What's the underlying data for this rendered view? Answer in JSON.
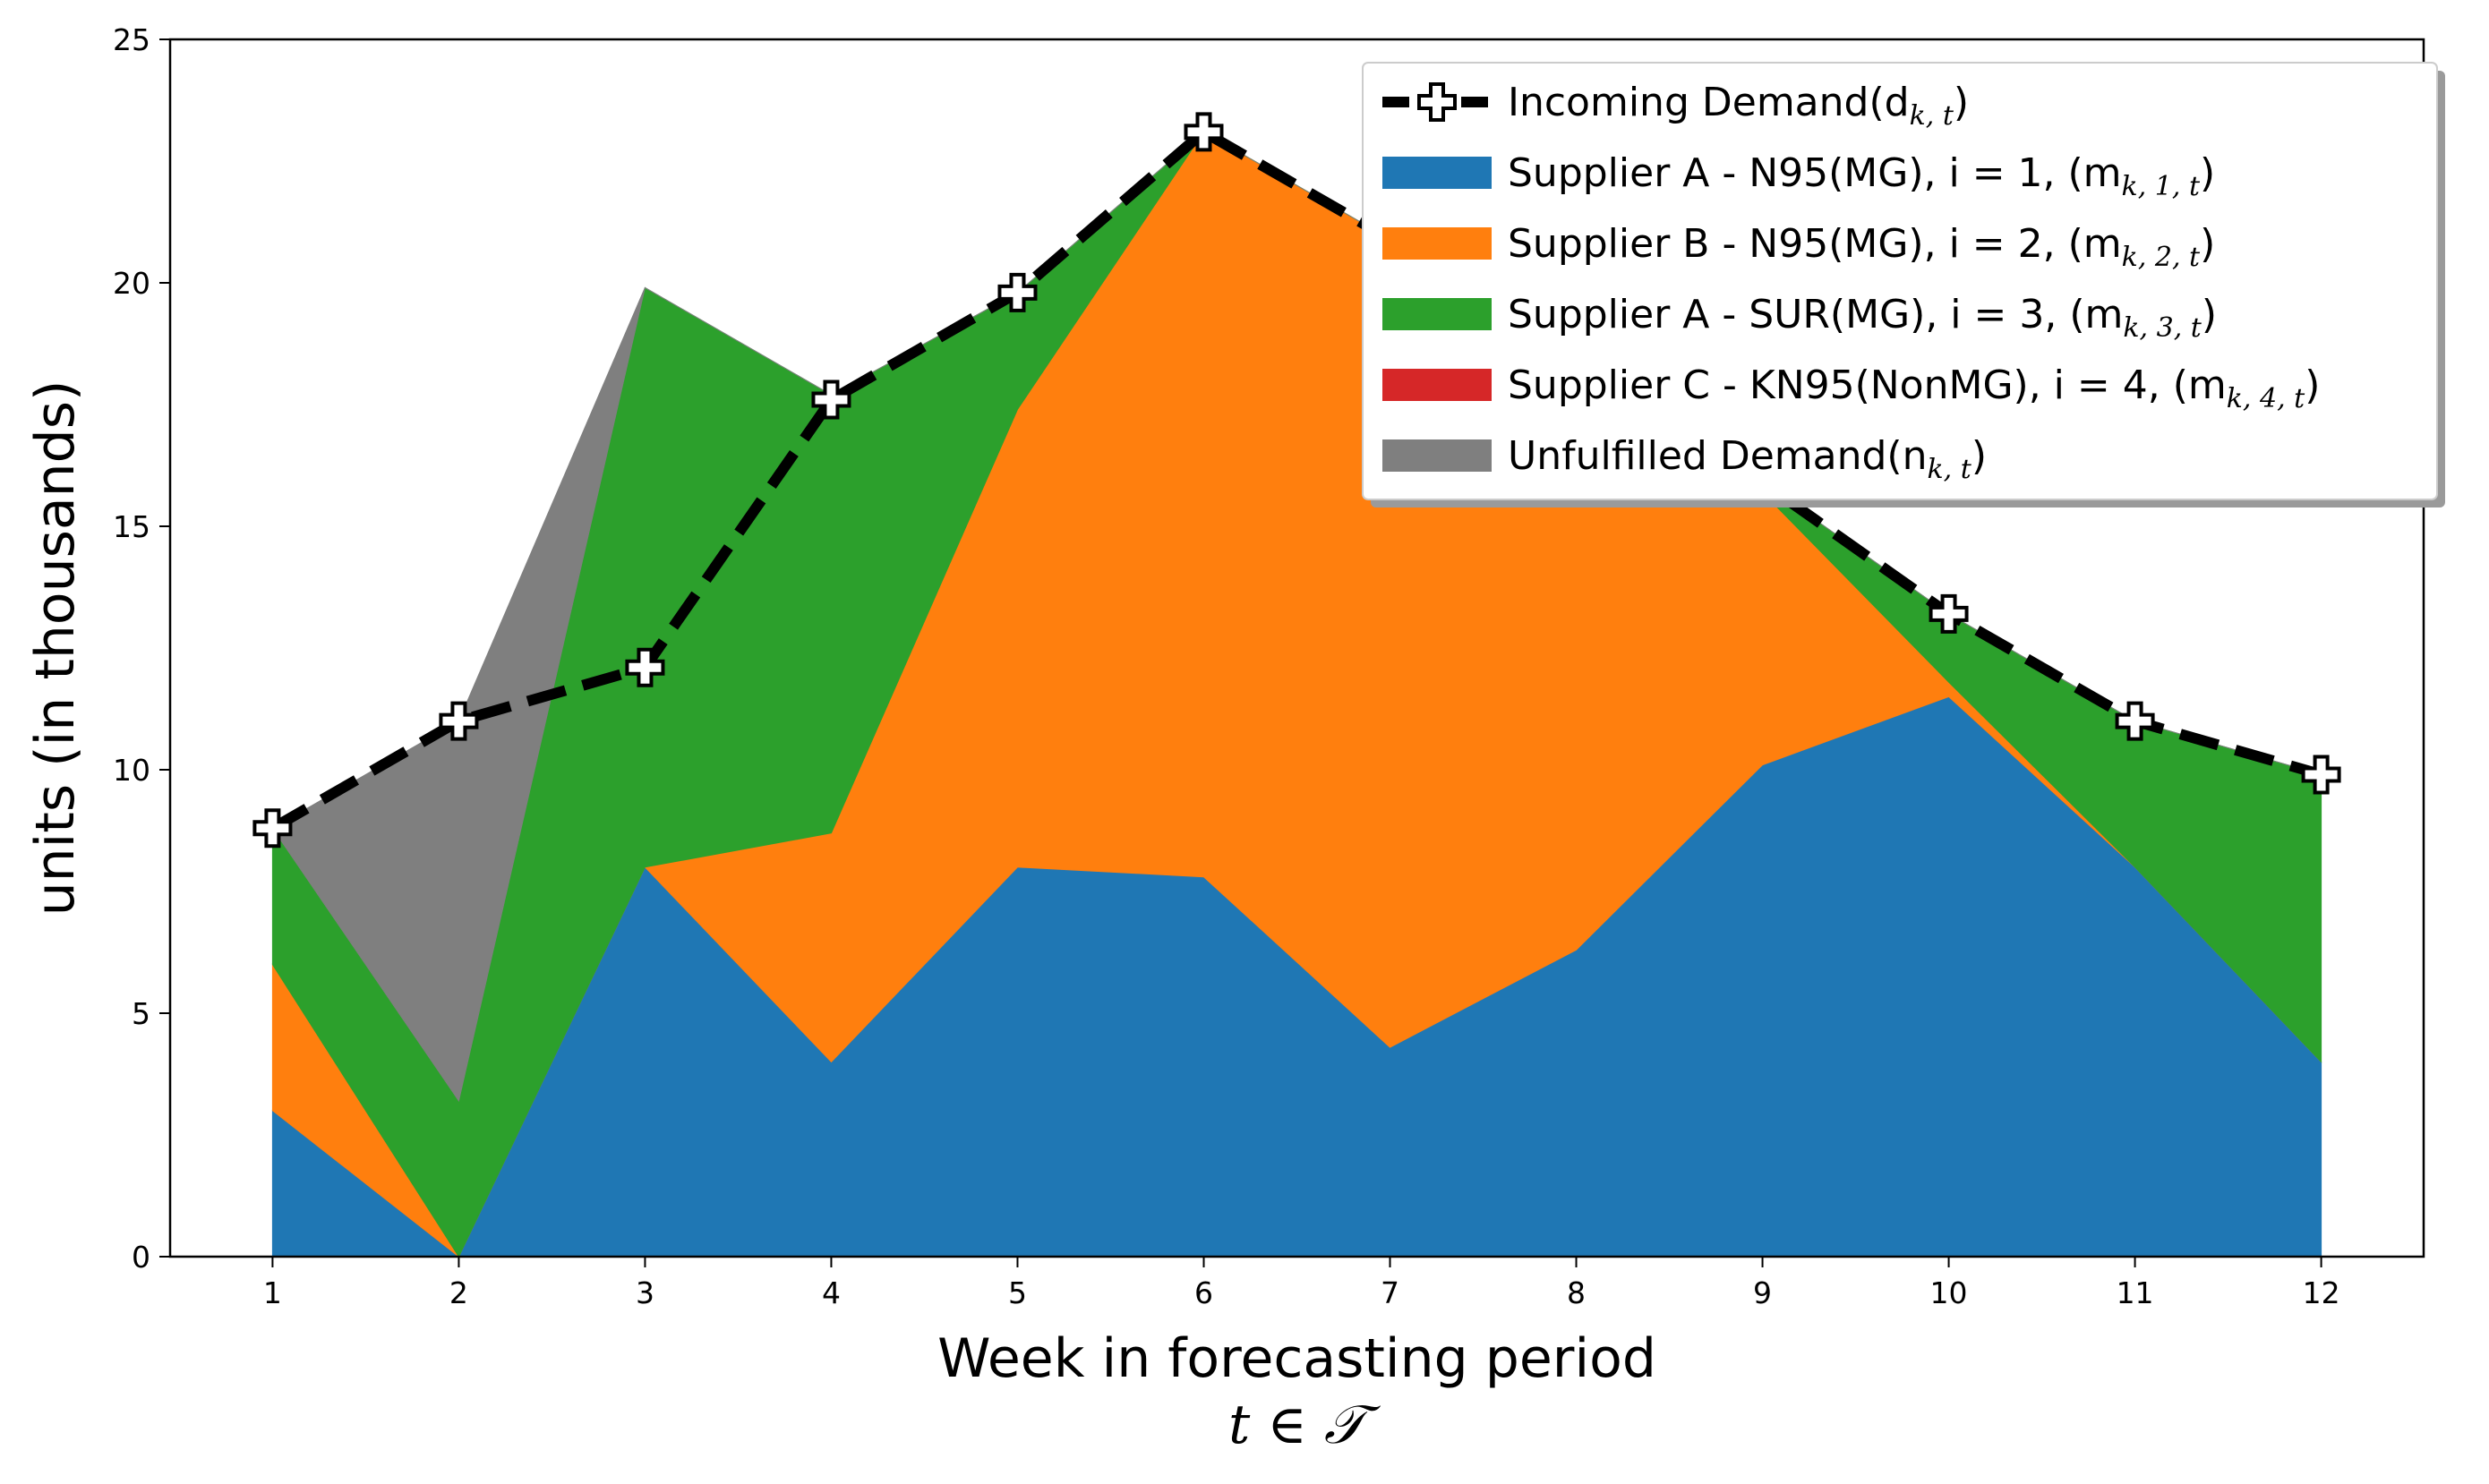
{
  "chart_data": {
    "type": "area",
    "stacked": true,
    "x": [
      1,
      2,
      3,
      4,
      5,
      6,
      7,
      8,
      9,
      10,
      11,
      12
    ],
    "xlabel": "Week in forecasting period",
    "xlabel_math": "t ∈ 𝒯",
    "ylabel": "units (in thousands)",
    "xlim": [
      0.45,
      12.55
    ],
    "ylim": [
      0,
      25
    ],
    "xticks": [
      "1",
      "2",
      "3",
      "4",
      "5",
      "6",
      "7",
      "8",
      "9",
      "10",
      "11",
      "12"
    ],
    "yticks": [
      "0",
      "5",
      "10",
      "15",
      "20",
      "25"
    ],
    "grid": false,
    "legend_position": "upper-right",
    "series": [
      {
        "name": "Supplier A - N95(MG), i = 1, (m",
        "subscript": "k, 1, t",
        "color": "#1f77b4",
        "values": [
          3.0,
          0.0,
          8.0,
          4.0,
          8.0,
          7.8,
          4.3,
          6.3,
          10.1,
          11.5,
          8.0,
          4.0
        ]
      },
      {
        "name": "Supplier B - N95(MG), i = 2, (m",
        "subscript": "k, 2, t",
        "color": "#ff7f0e",
        "values": [
          3.0,
          0.0,
          0.0,
          4.7,
          9.4,
          15.3,
          16.6,
          12.8,
          5.6,
          0.3,
          0.0,
          0.0
        ]
      },
      {
        "name": "Supplier A - SUR(MG), i = 3, (m",
        "subscript": "k, 3, t",
        "color": "#2ca02c",
        "values": [
          2.8,
          3.2,
          11.9,
          9.0,
          2.4,
          0.0,
          0.0,
          0.0,
          0.2,
          1.4,
          3.0,
          5.9
        ]
      },
      {
        "name": "Supplier C - KN95(NonMG), i = 4, (m",
        "subscript": "k, 4, t",
        "color": "#d62728",
        "values": [
          0,
          0,
          0,
          0,
          0,
          0,
          0,
          0,
          0,
          0,
          0,
          0
        ]
      },
      {
        "name": "Unfulfilled Demand(n",
        "subscript": "k, t",
        "color": "#7f7f7f",
        "values": [
          0.0,
          7.8,
          0.0,
          0.0,
          0.0,
          0.0,
          0.0,
          0.0,
          0.0,
          0.0,
          0.0,
          0.0
        ]
      }
    ],
    "demand": {
      "name": "Incoming Demand(d",
      "subscript": "k, t",
      "color": "#000000",
      "values": [
        8.8,
        11.0,
        12.1,
        17.6,
        19.8,
        23.1,
        20.9,
        19.1,
        15.9,
        13.2,
        11.0,
        9.9
      ]
    }
  }
}
